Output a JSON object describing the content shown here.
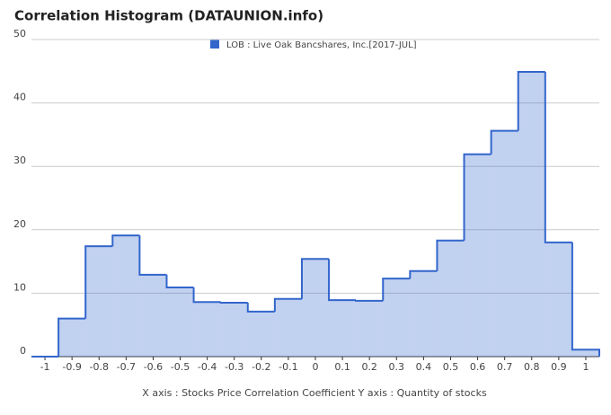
{
  "chart_data": {
    "type": "histogram",
    "title": "Correlation Histogram (DATAUNION.info)",
    "xlabel": "X axis : Stocks Price Correlation Coefficient  Y axis : Quantity of stocks",
    "series": [
      {
        "name": "LOB : Live Oak Bancshares, Inc.[2017-JUL]",
        "color": "#3366cc",
        "bins": [
          -1.05,
          -0.95,
          -0.85,
          -0.75,
          -0.65,
          -0.55,
          -0.45,
          -0.35,
          -0.25,
          -0.15,
          -0.05,
          0.05,
          0.15,
          0.25,
          0.35,
          0.45,
          0.55,
          0.65,
          0.75,
          0.85,
          0.95,
          1.05
        ],
        "counts": [
          0,
          6,
          17.4,
          19.1,
          12.9,
          10.9,
          8.6,
          8.5,
          7.1,
          9.1,
          15.4,
          8.9,
          8.8,
          12.3,
          13.5,
          18.3,
          31.9,
          35.6,
          44.9,
          18,
          1.1
        ]
      }
    ],
    "xlim": [
      -1.05,
      1.05
    ],
    "xticks": [
      -1,
      -0.9,
      -0.8,
      -0.7,
      -0.6,
      -0.5,
      -0.4,
      -0.3,
      -0.2,
      -0.1,
      0,
      0.1,
      0.2,
      0.3,
      0.4,
      0.5,
      0.6,
      0.7,
      0.8,
      0.9,
      1
    ],
    "ylim": [
      0,
      50
    ],
    "yticks": [
      0,
      10,
      20,
      30,
      40,
      50
    ],
    "grid": true
  }
}
